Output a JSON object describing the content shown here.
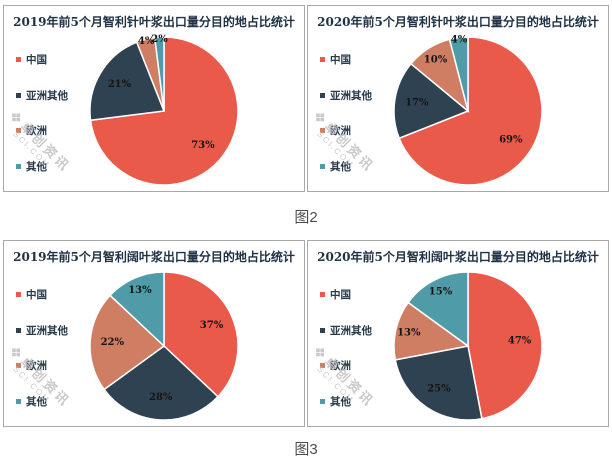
{
  "captions": [
    "图2",
    "图3"
  ],
  "colors": [
    "#ea5a4b",
    "#2e4252",
    "#cf7e64",
    "#4f9ba7"
  ],
  "text_colors": {
    "title": "#203246",
    "legend": "#2a3b4d",
    "slice_label": "#141414",
    "caption": "#4d4d4d"
  },
  "watermark": {
    "logo": "❖",
    "text": "卓创资讯",
    "subtext": "SCI.COM"
  },
  "chart_data": [
    {
      "type": "pie",
      "title": "2019年前5个月智利针叶浆出口量分目的地占比统计",
      "categories": [
        "中国",
        "亚洲其他",
        "欧洲",
        "其他"
      ],
      "values": [
        73,
        21,
        4,
        2
      ],
      "labels": [
        "73%",
        "21%",
        "4%",
        "2%"
      ],
      "legend_position": "left",
      "start_angle_deg": 0,
      "direction": "clockwise"
    },
    {
      "type": "pie",
      "title": "2020年前5个月智利针叶浆出口量分目的地占比统计",
      "categories": [
        "中国",
        "亚洲其他",
        "欧洲",
        "其他"
      ],
      "values": [
        69,
        17,
        10,
        4
      ],
      "labels": [
        "69%",
        "17%",
        "10%",
        "4%"
      ],
      "legend_position": "left",
      "start_angle_deg": 0,
      "direction": "clockwise"
    },
    {
      "type": "pie",
      "title": "2019年前5个月智利阔叶浆出口量分目的地占比统计",
      "categories": [
        "中国",
        "亚洲其他",
        "欧洲",
        "其他"
      ],
      "values": [
        37,
        28,
        22,
        13
      ],
      "labels": [
        "37%",
        "28%",
        "22%",
        "13%"
      ],
      "legend_position": "left",
      "start_angle_deg": 0,
      "direction": "clockwise"
    },
    {
      "type": "pie",
      "title": "2020年前5个月智利阔叶浆出口量分目的地占比统计",
      "categories": [
        "中国",
        "亚洲其他",
        "欧洲",
        "其他"
      ],
      "values": [
        47,
        25,
        13,
        15
      ],
      "labels": [
        "47%",
        "25%",
        "13%",
        "15%"
      ],
      "legend_position": "left",
      "start_angle_deg": 0,
      "direction": "clockwise"
    }
  ]
}
